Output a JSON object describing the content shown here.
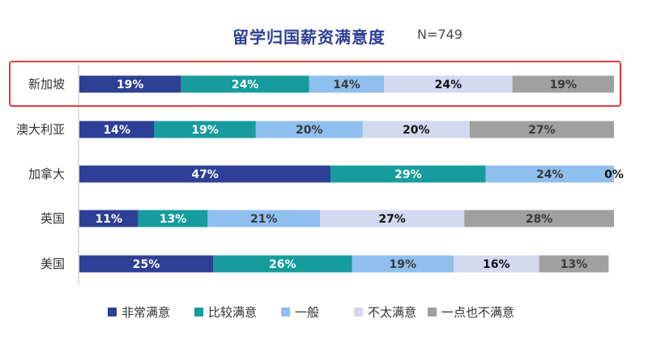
{
  "chart_data": {
    "type": "bar",
    "orientation": "horizontal",
    "stacked": true,
    "percent": true,
    "title": "留学归国薪资满意度",
    "subtitle": "N=749",
    "categories": [
      "新加坡",
      "澳大利亚",
      "加拿大",
      "英国",
      "美国"
    ],
    "highlight_category": "新加坡",
    "highlight_color": "#e83a3a",
    "series": [
      {
        "name": "非常满意",
        "color": "#2e3f96",
        "label_color": "#ffffff",
        "values": [
          19,
          14,
          47,
          11,
          25
        ]
      },
      {
        "name": "比较满意",
        "color": "#169c9c",
        "label_color": "#ffffff",
        "values": [
          24,
          19,
          29,
          13,
          26
        ]
      },
      {
        "name": "一般",
        "color": "#8fbfee",
        "label_color": "#3a3a3a",
        "values": [
          14,
          20,
          24,
          21,
          19
        ]
      },
      {
        "name": "不太满意",
        "color": "#d2d9f0",
        "label_color": "#111111",
        "values": [
          24,
          20,
          0,
          27,
          16
        ]
      },
      {
        "name": "一点也不满意",
        "color": "#a0a0a0",
        "label_color": "#3a3a3a",
        "values": [
          19,
          27,
          0,
          28,
          13
        ]
      }
    ],
    "value_labels": [
      [
        "19%",
        "14%",
        "47%",
        "11%",
        "25%"
      ],
      [
        "24%",
        "19%",
        "29%",
        "13%",
        "26%"
      ],
      [
        "14%",
        "20%",
        "24%",
        "21%",
        "19%"
      ],
      [
        "24%",
        "20%",
        "0%",
        "27%",
        "16%"
      ],
      [
        "19%",
        "27%",
        "",
        "28%",
        "13%"
      ]
    ],
    "xlim": [
      0,
      100
    ],
    "legend_position": "bottom",
    "grid": false
  }
}
